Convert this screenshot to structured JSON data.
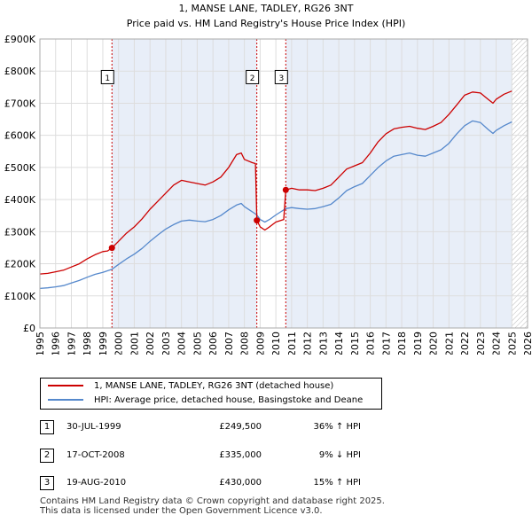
{
  "chart_data": {
    "type": "line",
    "title": "1, MANSE LANE, TADLEY, RG26 3NT",
    "subtitle": "Price paid vs. HM Land Registry's House Price Index (HPI)",
    "xlim": [
      1995,
      2026
    ],
    "ylim": [
      0,
      900000
    ],
    "x_ticks": [
      "1995",
      "1996",
      "1997",
      "1998",
      "1999",
      "2000",
      "2001",
      "2002",
      "2003",
      "2004",
      "2005",
      "2006",
      "2007",
      "2008",
      "2009",
      "2010",
      "2011",
      "2012",
      "2013",
      "2014",
      "2015",
      "2016",
      "2017",
      "2018",
      "2019",
      "2020",
      "2021",
      "2022",
      "2023",
      "2024",
      "2025",
      "2026"
    ],
    "y_ticks": [
      {
        "value": 0,
        "label": "£0"
      },
      {
        "value": 100000,
        "label": "£100K"
      },
      {
        "value": 200000,
        "label": "£200K"
      },
      {
        "value": 300000,
        "label": "£300K"
      },
      {
        "value": 400000,
        "label": "£400K"
      },
      {
        "value": 500000,
        "label": "£500K"
      },
      {
        "value": 600000,
        "label": "£600K"
      },
      {
        "value": 700000,
        "label": "£700K"
      },
      {
        "value": 800000,
        "label": "£800K"
      },
      {
        "value": 900000,
        "label": "£900K"
      }
    ],
    "shaded_ranges": [
      [
        1999.58,
        2008.79
      ],
      [
        2010.63,
        2025.0
      ]
    ],
    "hatched_range": [
      2025.0,
      2026
    ],
    "colors": {
      "property": "#cc0000",
      "hpi": "#5588cc",
      "shade": "#e8eef8",
      "grid": "#dddddd",
      "vline": "#cc0000"
    },
    "series": [
      {
        "name": "1, MANSE LANE, TADLEY, RG26 3NT (detached house)",
        "points": [
          [
            1995.0,
            168000
          ],
          [
            1995.5,
            170000
          ],
          [
            1996.0,
            175000
          ],
          [
            1996.5,
            180000
          ],
          [
            1997.0,
            190000
          ],
          [
            1997.5,
            200000
          ],
          [
            1998.0,
            215000
          ],
          [
            1998.5,
            228000
          ],
          [
            1999.0,
            238000
          ],
          [
            1999.3,
            240000
          ],
          [
            1999.58,
            249500
          ],
          [
            2000.0,
            270000
          ],
          [
            2000.5,
            295000
          ],
          [
            2001.0,
            315000
          ],
          [
            2001.5,
            340000
          ],
          [
            2002.0,
            370000
          ],
          [
            2002.5,
            395000
          ],
          [
            2003.0,
            420000
          ],
          [
            2003.5,
            445000
          ],
          [
            2004.0,
            460000
          ],
          [
            2004.5,
            455000
          ],
          [
            2005.0,
            450000
          ],
          [
            2005.5,
            445000
          ],
          [
            2006.0,
            455000
          ],
          [
            2006.5,
            470000
          ],
          [
            2007.0,
            500000
          ],
          [
            2007.5,
            540000
          ],
          [
            2007.8,
            545000
          ],
          [
            2008.0,
            525000
          ],
          [
            2008.5,
            515000
          ],
          [
            2008.7,
            512000
          ],
          [
            2008.79,
            335000
          ],
          [
            2009.0,
            315000
          ],
          [
            2009.3,
            305000
          ],
          [
            2009.6,
            315000
          ],
          [
            2010.0,
            330000
          ],
          [
            2010.5,
            338000
          ],
          [
            2010.63,
            430000
          ],
          [
            2011.0,
            435000
          ],
          [
            2011.5,
            430000
          ],
          [
            2012.0,
            430000
          ],
          [
            2012.5,
            428000
          ],
          [
            2013.0,
            435000
          ],
          [
            2013.5,
            445000
          ],
          [
            2014.0,
            470000
          ],
          [
            2014.5,
            495000
          ],
          [
            2015.0,
            505000
          ],
          [
            2015.5,
            515000
          ],
          [
            2016.0,
            545000
          ],
          [
            2016.5,
            580000
          ],
          [
            2017.0,
            605000
          ],
          [
            2017.5,
            620000
          ],
          [
            2018.0,
            625000
          ],
          [
            2018.5,
            628000
          ],
          [
            2019.0,
            622000
          ],
          [
            2019.5,
            618000
          ],
          [
            2020.0,
            628000
          ],
          [
            2020.5,
            640000
          ],
          [
            2021.0,
            665000
          ],
          [
            2021.5,
            695000
          ],
          [
            2022.0,
            725000
          ],
          [
            2022.5,
            735000
          ],
          [
            2023.0,
            732000
          ],
          [
            2023.5,
            712000
          ],
          [
            2023.8,
            700000
          ],
          [
            2024.0,
            712000
          ],
          [
            2024.5,
            728000
          ],
          [
            2025.0,
            738000
          ]
        ]
      },
      {
        "name": "HPI: Average price, detached house, Basingstoke and Deane",
        "points": [
          [
            1995.0,
            123000
          ],
          [
            1995.5,
            125000
          ],
          [
            1996.0,
            128000
          ],
          [
            1996.5,
            132000
          ],
          [
            1997.0,
            140000
          ],
          [
            1997.5,
            148000
          ],
          [
            1998.0,
            158000
          ],
          [
            1998.5,
            167000
          ],
          [
            1999.0,
            173000
          ],
          [
            1999.58,
            183000
          ],
          [
            2000.0,
            198000
          ],
          [
            2000.5,
            215000
          ],
          [
            2001.0,
            230000
          ],
          [
            2001.5,
            248000
          ],
          [
            2002.0,
            270000
          ],
          [
            2002.5,
            290000
          ],
          [
            2003.0,
            308000
          ],
          [
            2003.5,
            322000
          ],
          [
            2004.0,
            333000
          ],
          [
            2004.5,
            336000
          ],
          [
            2005.0,
            333000
          ],
          [
            2005.5,
            331000
          ],
          [
            2006.0,
            338000
          ],
          [
            2006.5,
            350000
          ],
          [
            2007.0,
            368000
          ],
          [
            2007.5,
            383000
          ],
          [
            2007.8,
            388000
          ],
          [
            2008.0,
            378000
          ],
          [
            2008.5,
            362000
          ],
          [
            2008.79,
            352000
          ],
          [
            2009.0,
            338000
          ],
          [
            2009.3,
            330000
          ],
          [
            2009.6,
            338000
          ],
          [
            2010.0,
            352000
          ],
          [
            2010.63,
            372000
          ],
          [
            2011.0,
            375000
          ],
          [
            2011.5,
            372000
          ],
          [
            2012.0,
            370000
          ],
          [
            2012.5,
            372000
          ],
          [
            2013.0,
            378000
          ],
          [
            2013.5,
            385000
          ],
          [
            2014.0,
            405000
          ],
          [
            2014.5,
            428000
          ],
          [
            2015.0,
            440000
          ],
          [
            2015.5,
            450000
          ],
          [
            2016.0,
            475000
          ],
          [
            2016.5,
            500000
          ],
          [
            2017.0,
            520000
          ],
          [
            2017.5,
            535000
          ],
          [
            2018.0,
            540000
          ],
          [
            2018.5,
            545000
          ],
          [
            2019.0,
            538000
          ],
          [
            2019.5,
            535000
          ],
          [
            2020.0,
            545000
          ],
          [
            2020.5,
            555000
          ],
          [
            2021.0,
            575000
          ],
          [
            2021.5,
            605000
          ],
          [
            2022.0,
            630000
          ],
          [
            2022.5,
            645000
          ],
          [
            2023.0,
            640000
          ],
          [
            2023.5,
            618000
          ],
          [
            2023.8,
            606000
          ],
          [
            2024.0,
            615000
          ],
          [
            2024.5,
            630000
          ],
          [
            2025.0,
            642000
          ]
        ]
      }
    ],
    "markers": [
      {
        "label": "1",
        "x": 1999.58,
        "y": 249500
      },
      {
        "label": "2",
        "x": 2008.79,
        "y": 335000
      },
      {
        "label": "3",
        "x": 2010.63,
        "y": 430000
      }
    ],
    "marker_label_value": 780000
  },
  "legend": {
    "property_label": "1, MANSE LANE, TADLEY, RG26 3NT (detached house)",
    "hpi_label": "HPI: Average price, detached house, Basingstoke and Deane"
  },
  "transactions": [
    {
      "num": "1",
      "date": "30-JUL-1999",
      "price": "£249,500",
      "hpi": "36% ↑ HPI"
    },
    {
      "num": "2",
      "date": "17-OCT-2008",
      "price": "£335,000",
      "hpi": "9% ↓ HPI"
    },
    {
      "num": "3",
      "date": "19-AUG-2010",
      "price": "£430,000",
      "hpi": "15% ↑ HPI"
    }
  ],
  "footer": {
    "line1": "Contains HM Land Registry data © Crown copyright and database right 2025.",
    "line2": "This data is licensed under the Open Government Licence v3.0."
  }
}
